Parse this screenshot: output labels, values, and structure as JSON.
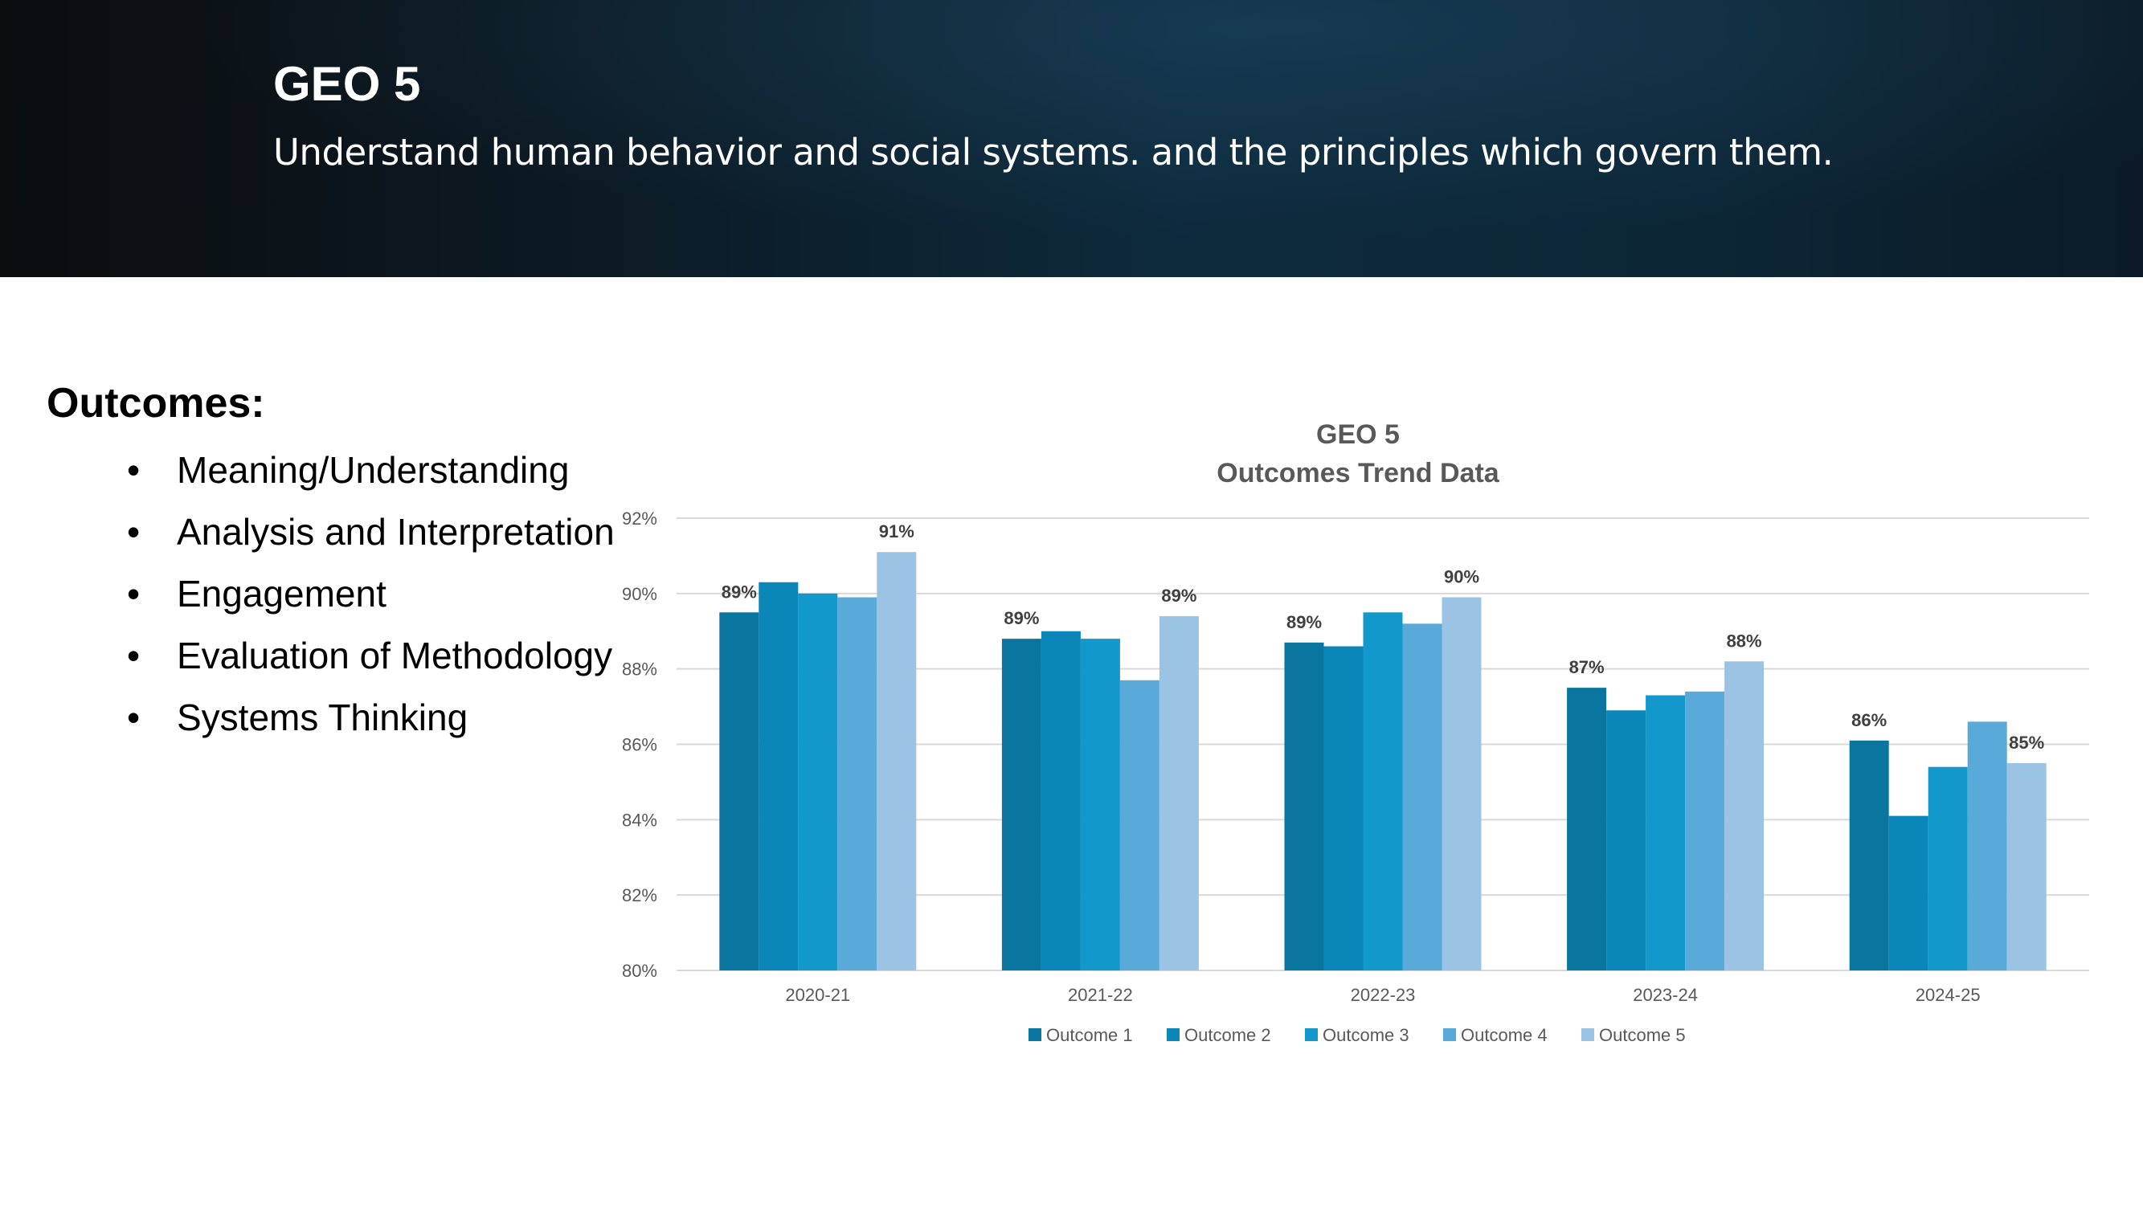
{
  "header": {
    "title": "GEO 5",
    "subtitle": "Understand human behavior and social systems. and the principles which govern them."
  },
  "outcomes": {
    "heading": "Outcomes:",
    "items": [
      "Meaning/Understanding",
      "Analysis and Interpretation",
      "Engagement",
      "Evaluation of Methodology",
      "Systems Thinking"
    ]
  },
  "colors": {
    "outcome1": "#0a76a0",
    "outcome2": "#0b86b8",
    "outcome3": "#1398cc",
    "outcome4": "#5aaad9",
    "outcome5": "#9bc4e4"
  },
  "chart_data": {
    "type": "bar",
    "title": "GEO 5",
    "subtitle": "Outcomes Trend Data",
    "xlabel": "",
    "ylabel": "",
    "ylim": [
      80,
      92
    ],
    "yticks": [
      "80%",
      "82%",
      "84%",
      "86%",
      "88%",
      "90%",
      "92%"
    ],
    "grid": true,
    "legend": "bottom",
    "categories": [
      "2020-21",
      "2021-22",
      "2022-23",
      "2023-24",
      "2024-25"
    ],
    "series": [
      {
        "name": "Outcome 1",
        "values": [
          89.5,
          88.8,
          88.7,
          87.5,
          86.1
        ]
      },
      {
        "name": "Outcome 2",
        "values": [
          90.3,
          89.0,
          88.6,
          86.9,
          84.1
        ]
      },
      {
        "name": "Outcome 3",
        "values": [
          90.0,
          88.8,
          89.5,
          87.3,
          85.4
        ]
      },
      {
        "name": "Outcome 4",
        "values": [
          89.9,
          87.7,
          89.2,
          87.4,
          86.6
        ]
      },
      {
        "name": "Outcome 5",
        "values": [
          91.1,
          89.4,
          89.9,
          88.2,
          85.5
        ]
      }
    ],
    "data_labels": [
      {
        "category": "2020-21",
        "series": "Outcome 1",
        "text": "89%"
      },
      {
        "category": "2020-21",
        "series": "Outcome 5",
        "text": "91%"
      },
      {
        "category": "2021-22",
        "series": "Outcome 1",
        "text": "89%"
      },
      {
        "category": "2021-22",
        "series": "Outcome 5",
        "text": "89%"
      },
      {
        "category": "2022-23",
        "series": "Outcome 1",
        "text": "89%"
      },
      {
        "category": "2022-23",
        "series": "Outcome 5",
        "text": "90%"
      },
      {
        "category": "2023-24",
        "series": "Outcome 1",
        "text": "87%"
      },
      {
        "category": "2023-24",
        "series": "Outcome 5",
        "text": "88%"
      },
      {
        "category": "2024-25",
        "series": "Outcome 1",
        "text": "86%"
      },
      {
        "category": "2024-25",
        "series": "Outcome 5",
        "text": "85%"
      }
    ]
  }
}
